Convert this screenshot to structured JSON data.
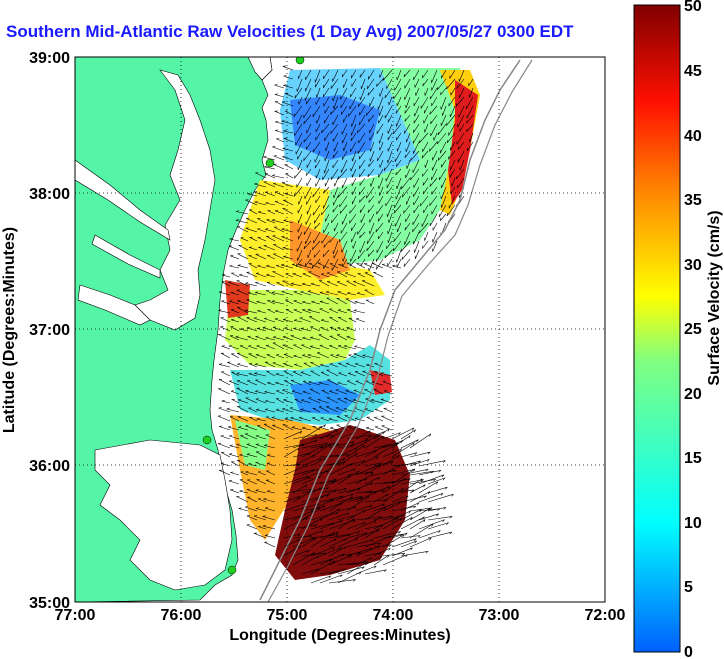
{
  "map": {
    "title": "Southern Mid-Atlantic Raw Velocities (1 Day Avg) 2007/05/27 0300 EDT",
    "x_axis_label": "Longitude (Degrees:Minutes)",
    "y_axis_label": "Latitude (Degrees:Minutes)",
    "x_ticks": [
      "77:00",
      "76:00",
      "75:00",
      "74:00",
      "73:00",
      "72:00"
    ],
    "y_ticks": [
      "39:00",
      "38:00",
      "37:00",
      "36:00",
      "35:00"
    ],
    "grid": "dotted",
    "land_color": "#55f5a8",
    "water_color": "#ffffff"
  },
  "colorbar": {
    "label": "Surface Velocity (cm/s)",
    "ticks": [
      "50",
      "45",
      "40",
      "35",
      "30",
      "25",
      "20",
      "15",
      "10",
      "5",
      "0"
    ],
    "min": 0,
    "max": 50,
    "colors": [
      "#0080ff",
      "#00ffff",
      "#80ff80",
      "#ffff00",
      "#ff8000",
      "#ff0000",
      "#800000"
    ]
  }
}
